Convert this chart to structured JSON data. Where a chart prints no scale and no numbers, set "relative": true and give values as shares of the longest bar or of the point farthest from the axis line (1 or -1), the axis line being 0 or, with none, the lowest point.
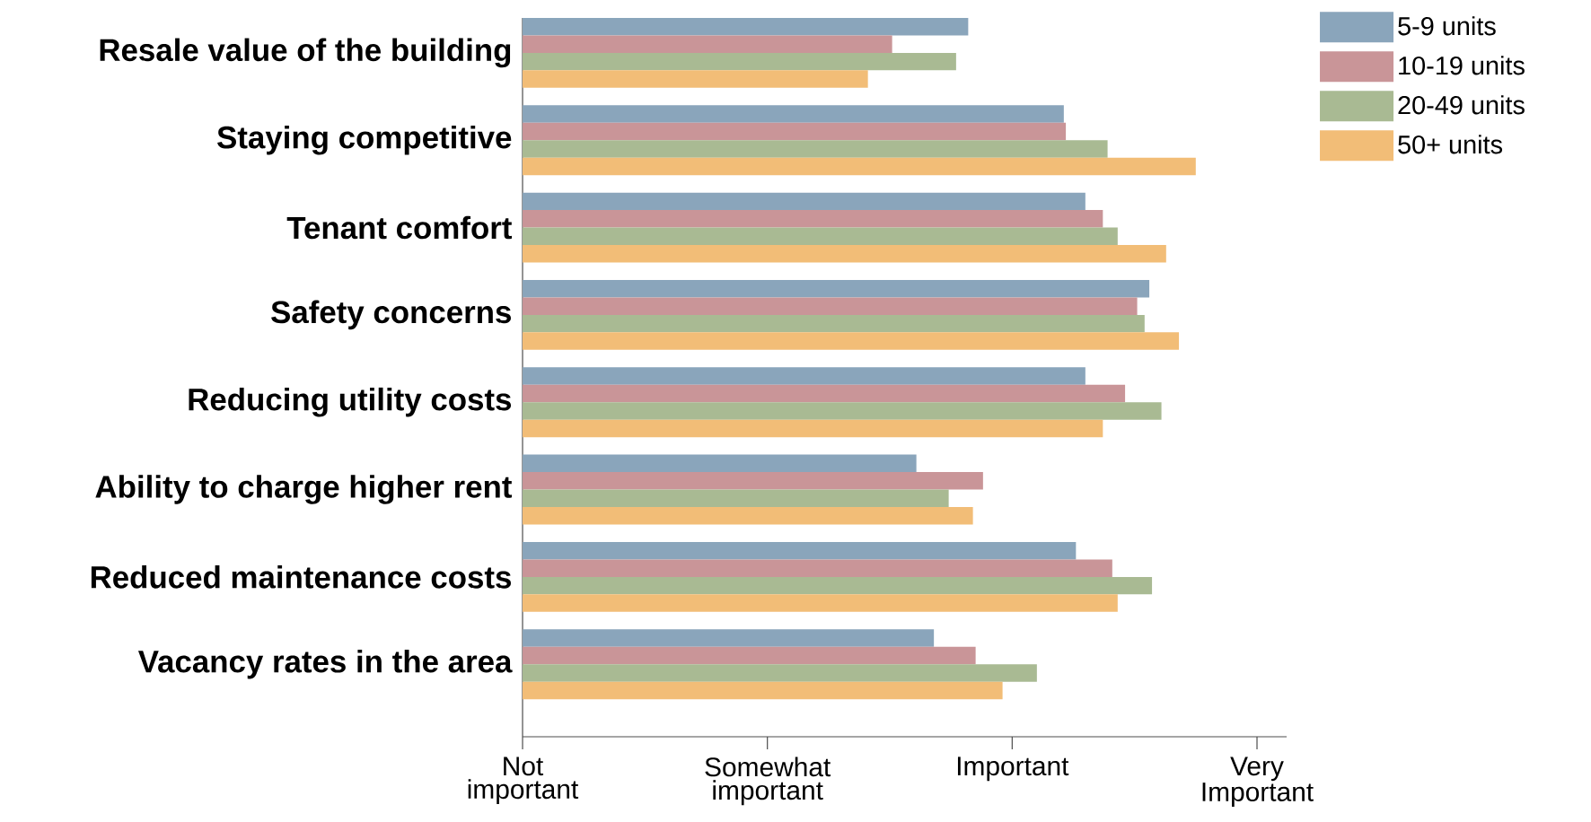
{
  "chart_data": {
    "type": "bar",
    "orientation": "horizontal",
    "relative": true,
    "categories": [
      "Resale value of the building",
      "Staying competitive",
      "Tenant comfort",
      "Safety concerns",
      "Reducing utility costs",
      "Ability to charge higher rent",
      "Reduced maintenance costs",
      "Vacancy rates in the area"
    ],
    "series": [
      {
        "name": "5-9 units",
        "color": "#8aa5bb",
        "values": [
          0.662,
          0.804,
          0.836,
          0.931,
          0.836,
          0.585,
          0.822,
          0.611
        ]
      },
      {
        "name": "10-19 units",
        "color": "#c99598",
        "values": [
          0.549,
          0.807,
          0.862,
          0.913,
          0.895,
          0.684,
          0.876,
          0.673
        ]
      },
      {
        "name": "20-49 units",
        "color": "#a9ba93",
        "values": [
          0.644,
          0.869,
          0.884,
          0.924,
          0.949,
          0.633,
          0.935,
          0.764
        ]
      },
      {
        "name": "50+ units",
        "color": "#f2bd77",
        "values": [
          0.513,
          1,
          0.956,
          0.975,
          0.862,
          0.669,
          0.884,
          0.713
        ]
      }
    ],
    "annotations": [
      "Not important",
      "Somewhat important",
      "Important",
      "Very Important"
    ],
    "legend": "top right"
  }
}
